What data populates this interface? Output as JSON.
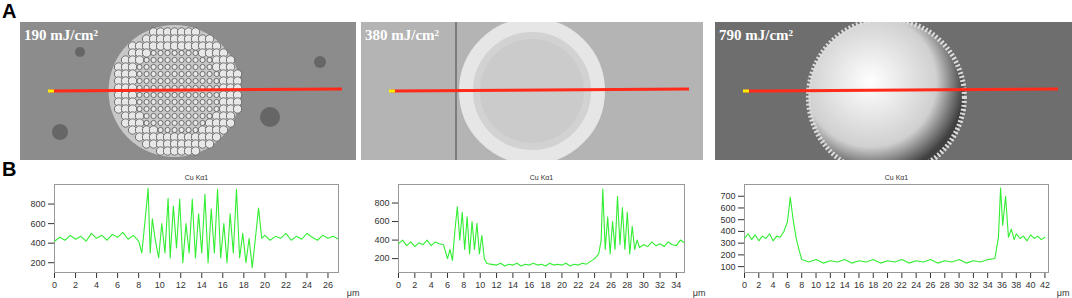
{
  "panel_labels": [
    "A",
    "B"
  ],
  "chart_data": [
    {
      "type": "line",
      "annotation": "190 mJ/cm²",
      "title": "Cu Kα1",
      "x_label": "μm",
      "color": "#33ee33",
      "x": [
        0,
        0.5,
        1,
        1.5,
        2,
        2.5,
        3,
        3.5,
        4,
        4.5,
        5,
        5.5,
        6,
        6.5,
        7,
        7.5,
        8,
        8.3,
        8.6,
        8.9,
        9.1,
        9.3,
        9.6,
        9.9,
        10.2,
        10.5,
        10.8,
        11.0,
        11.3,
        11.6,
        11.9,
        12.2,
        12.5,
        12.8,
        13.1,
        13.4,
        13.7,
        14.0,
        14.3,
        14.6,
        14.9,
        15.2,
        15.5,
        15.8,
        16.1,
        16.4,
        16.7,
        17.0,
        17.3,
        17.6,
        17.9,
        18.2,
        18.5,
        18.8,
        19.1,
        19.4,
        19.7,
        20,
        20.5,
        21,
        21.5,
        22,
        22.5,
        23,
        23.5,
        24,
        24.5,
        25,
        25.5,
        26,
        26.5,
        27
      ],
      "values": [
        420,
        460,
        430,
        480,
        440,
        470,
        420,
        500,
        450,
        480,
        430,
        490,
        460,
        510,
        440,
        480,
        420,
        300,
        620,
        960,
        300,
        650,
        420,
        250,
        600,
        300,
        860,
        250,
        780,
        350,
        850,
        200,
        600,
        300,
        850,
        250,
        700,
        300,
        900,
        200,
        750,
        300,
        950,
        250,
        600,
        200,
        700,
        300,
        950,
        250,
        500,
        200,
        450,
        150,
        450,
        760,
        450,
        480,
        430,
        470,
        450,
        500,
        430,
        470,
        440,
        500,
        460,
        430,
        480,
        450,
        470,
        440
      ],
      "xlim": [
        0,
        27
      ],
      "xticks": [
        0,
        2,
        4,
        6,
        8,
        10,
        12,
        14,
        16,
        18,
        20,
        22,
        24,
        26
      ],
      "ylim": [
        100,
        1000
      ],
      "yticks": [
        200,
        400,
        600,
        800
      ]
    },
    {
      "type": "line",
      "annotation": "380 mJ/cm²",
      "title": "Cu Kα1",
      "x_label": "μm",
      "color": "#33ee33",
      "x": [
        0,
        0.5,
        1,
        1.5,
        2,
        2.5,
        3,
        3.5,
        4,
        4.5,
        5,
        5.5,
        6,
        6.3,
        6.6,
        6.9,
        7.2,
        7.5,
        7.8,
        8.1,
        8.4,
        8.7,
        9.0,
        9.3,
        9.6,
        9.9,
        10.2,
        10.5,
        10.8,
        11.2,
        12,
        12.5,
        13,
        13.5,
        14,
        14.5,
        15,
        15.5,
        16,
        16.5,
        17,
        17.5,
        18,
        18.5,
        19,
        19.5,
        20,
        20.5,
        21,
        21.5,
        22,
        22.5,
        23,
        23.5,
        24,
        24.5,
        24.8,
        25.0,
        25.3,
        25.6,
        25.9,
        26.2,
        26.5,
        26.8,
        27.1,
        27.4,
        27.7,
        28.0,
        28.3,
        28.6,
        28.9,
        29.2,
        29.5,
        30,
        30.5,
        31,
        31.5,
        32,
        32.5,
        33,
        33.5,
        34,
        34.5,
        35
      ],
      "values": [
        360,
        400,
        340,
        380,
        330,
        370,
        350,
        400,
        340,
        380,
        360,
        350,
        200,
        300,
        180,
        500,
        760,
        400,
        700,
        300,
        650,
        250,
        600,
        300,
        580,
        250,
        450,
        200,
        150,
        140,
        130,
        150,
        120,
        140,
        130,
        150,
        120,
        140,
        130,
        150,
        130,
        140,
        120,
        150,
        130,
        140,
        130,
        150,
        120,
        140,
        130,
        150,
        140,
        170,
        200,
        250,
        400,
        950,
        300,
        650,
        250,
        600,
        300,
        870,
        350,
        750,
        300,
        700,
        250,
        550,
        300,
        400,
        320,
        350,
        330,
        380,
        340,
        360,
        330,
        380,
        350,
        340,
        400,
        370
      ],
      "xlim": [
        0,
        35
      ],
      "xticks": [
        0,
        2,
        4,
        6,
        8,
        10,
        12,
        14,
        16,
        18,
        20,
        22,
        24,
        26,
        28,
        30,
        32,
        34
      ],
      "ylim": [
        50,
        1000
      ],
      "yticks": [
        200,
        400,
        600,
        800
      ]
    },
    {
      "type": "line",
      "annotation": "790 mJ/cm²",
      "title": "Cu Kα1",
      "x_label": "μm",
      "color": "#33ee33",
      "x": [
        0,
        0.5,
        1,
        1.5,
        2,
        2.5,
        3,
        3.5,
        4,
        4.5,
        5,
        5.5,
        6,
        6.4,
        6.8,
        7.2,
        7.6,
        8,
        8.5,
        9,
        10,
        11,
        12,
        13,
        14,
        15,
        16,
        17,
        18,
        19,
        20,
        21,
        22,
        23,
        24,
        25,
        26,
        27,
        28,
        29,
        30,
        31,
        32,
        33,
        34,
        35,
        35.5,
        35.8,
        36.1,
        36.5,
        36.9,
        37.3,
        37.7,
        38,
        38.5,
        39,
        39.5,
        40,
        40.5,
        41,
        41.5,
        42
      ],
      "values": [
        340,
        380,
        330,
        370,
        320,
        360,
        340,
        380,
        320,
        360,
        350,
        400,
        480,
        690,
        500,
        350,
        250,
        160,
        150,
        140,
        160,
        130,
        150,
        140,
        160,
        130,
        150,
        140,
        160,
        130,
        150,
        140,
        160,
        130,
        150,
        140,
        160,
        130,
        150,
        140,
        160,
        130,
        150,
        140,
        160,
        170,
        350,
        770,
        450,
        700,
        350,
        420,
        330,
        380,
        340,
        360,
        320,
        370,
        340,
        360,
        330,
        350
      ],
      "xlim": [
        0,
        42.5
      ],
      "xticks": [
        0,
        2,
        4,
        6,
        8,
        10,
        12,
        14,
        16,
        18,
        20,
        22,
        24,
        26,
        28,
        30,
        32,
        34,
        36,
        38,
        40,
        42
      ],
      "ylim": [
        50,
        800
      ],
      "yticks": [
        100,
        200,
        300,
        400,
        500,
        600,
        700
      ]
    }
  ]
}
